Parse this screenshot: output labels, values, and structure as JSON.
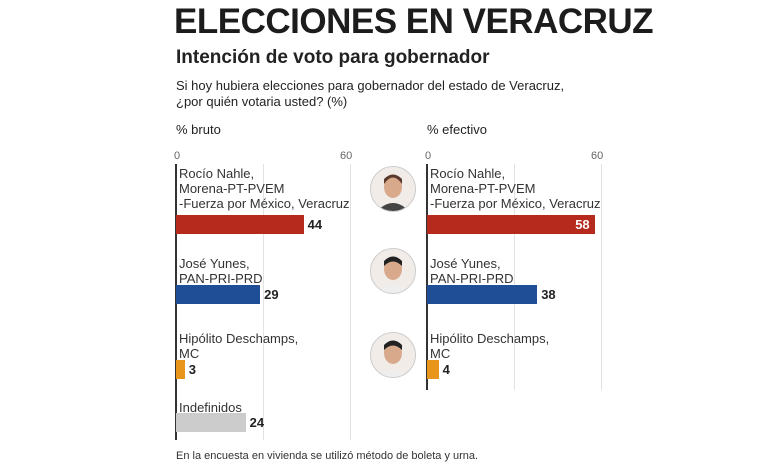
{
  "title": "ELECCIONES EN VERACRUZ",
  "subtitle": "Intención de voto para gobernador",
  "question": [
    "Si hoy hubiera elecciones para gobernador del estado de Veracruz,",
    "¿por quién votaria usted?  (%)"
  ],
  "footer": "En la encuesta en vivienda se utilizó método de boleta y urna.",
  "colors": {
    "morena": "#b52a1c",
    "pan": "#1f4e96",
    "mc": "#e8951c",
    "indef": "#cccccc"
  },
  "chart_data": [
    {
      "type": "bar",
      "orientation": "horizontal",
      "title": "% bruto",
      "xlim": [
        0,
        60
      ],
      "ticks": [
        "0",
        "60"
      ],
      "grid": [
        0,
        30,
        60
      ],
      "categories": [
        [
          "Rocío Nahle,",
          "Morena-PT-PVEM",
          "-Fuerza por México, Veracruz"
        ],
        [
          "José Yunes,",
          "PAN-PRI-PRD"
        ],
        [
          "Hipólito Deschamps,",
          "MC"
        ],
        [
          "Indefinidos"
        ]
      ],
      "values": [
        44,
        29,
        3,
        24
      ],
      "color_keys": [
        "morena",
        "pan",
        "mc",
        "indef"
      ]
    },
    {
      "type": "bar",
      "orientation": "horizontal",
      "title": "% efectivo",
      "xlim": [
        0,
        60
      ],
      "ticks": [
        "0",
        "60"
      ],
      "grid": [
        0,
        30,
        60
      ],
      "categories": [
        [
          "Rocío Nahle,",
          "Morena-PT-PVEM",
          "-Fuerza por México, Veracruz"
        ],
        [
          "José Yunes,",
          "PAN-PRI-PRD"
        ],
        [
          "Hipólito Deschamps,",
          "MC"
        ]
      ],
      "values": [
        58,
        38,
        4
      ],
      "color_keys": [
        "morena",
        "pan",
        "mc"
      ]
    }
  ]
}
